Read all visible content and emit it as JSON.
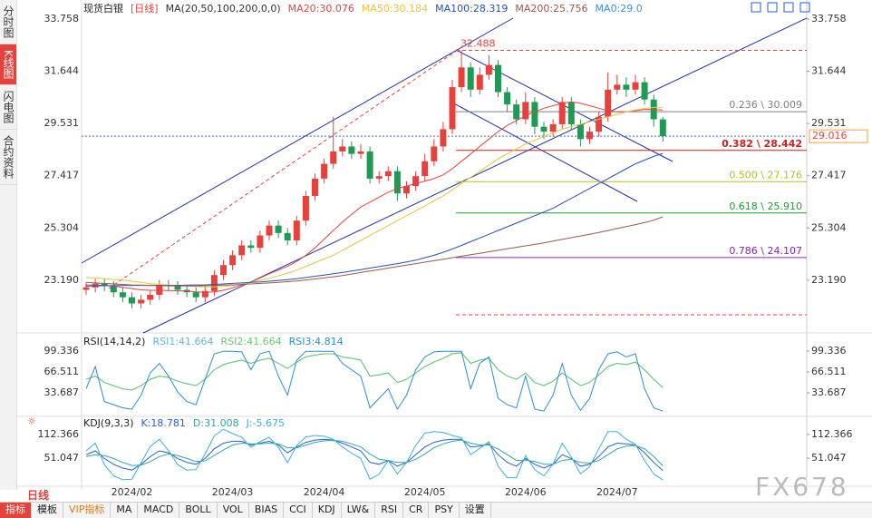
{
  "ui": {
    "side_tabs": [
      "分时图",
      "K线图",
      "闪电图",
      "合约资料"
    ],
    "period": "日线",
    "toolbar": [
      "指标",
      "模板",
      "VIP指标",
      "MA",
      "MACD",
      "BOLL",
      "VOL",
      "BIAS",
      "CCI",
      "KDJ",
      "LW&",
      "RSI",
      "CR",
      "PSY",
      "设置"
    ],
    "watermark": "FX678"
  },
  "chart_data": [
    {
      "type": "candlestick",
      "title": "现货白银",
      "subtitle": "[日线]",
      "indicator_label": "MA(20,50,100,200,0,0)",
      "categories": [
        null,
        null,
        null,
        null,
        null,
        "2024/02",
        null,
        null,
        null,
        null,
        null,
        null,
        null,
        null,
        null,
        null,
        "2024/03",
        null,
        null,
        null,
        null,
        null,
        null,
        null,
        null,
        null,
        "2024/04",
        null,
        null,
        null,
        null,
        null,
        null,
        null,
        null,
        null,
        null,
        "2024/05",
        null,
        null,
        null,
        null,
        null,
        null,
        null,
        null,
        null,
        null,
        "2024/06",
        null,
        null,
        null,
        null,
        null,
        null,
        null,
        null,
        null,
        "2024/07",
        null,
        null,
        null,
        null,
        null
      ],
      "open": [
        22.8,
        22.9,
        23.05,
        22.95,
        22.7,
        22.5,
        22.25,
        22.4,
        22.6,
        23.0,
        22.95,
        22.8,
        22.7,
        22.5,
        22.75,
        23.4,
        23.8,
        24.2,
        24.6,
        24.5,
        25.0,
        25.4,
        25.1,
        24.8,
        25.6,
        26.6,
        27.3,
        27.9,
        28.4,
        28.6,
        28.3,
        28.4,
        27.3,
        27.4,
        27.6,
        26.7,
        27.0,
        27.4,
        28.0,
        28.6,
        29.3,
        31.0,
        31.8,
        30.9,
        31.5,
        31.9,
        30.8,
        30.3,
        29.7,
        30.4,
        29.4,
        29.2,
        29.5,
        30.4,
        29.5,
        28.9,
        29.2,
        29.8,
        30.9,
        31.1,
        30.9,
        31.2,
        30.5,
        29.7
      ],
      "high": [
        23.1,
        23.25,
        23.25,
        23.15,
        22.9,
        22.7,
        22.6,
        22.8,
        23.2,
        23.2,
        23.15,
        23.0,
        22.9,
        22.95,
        23.6,
        24.0,
        24.4,
        24.8,
        24.8,
        25.2,
        25.6,
        25.6,
        25.3,
        25.8,
        26.8,
        27.5,
        28.1,
        29.8,
        28.9,
        28.8,
        28.7,
        28.6,
        27.6,
        27.8,
        27.8,
        27.2,
        27.6,
        28.3,
        28.9,
        29.6,
        31.3,
        32.488,
        32.0,
        31.8,
        32.3,
        32.1,
        31.0,
        30.5,
        30.8,
        30.6,
        29.6,
        29.7,
        30.6,
        30.6,
        29.7,
        29.4,
        30.0,
        31.6,
        31.5,
        31.4,
        31.5,
        31.4,
        30.7,
        29.8
      ],
      "low": [
        22.6,
        22.7,
        22.75,
        22.5,
        22.3,
        22.05,
        22.05,
        22.2,
        22.4,
        22.75,
        22.6,
        22.5,
        22.3,
        22.3,
        22.55,
        23.2,
        23.6,
        24.0,
        24.3,
        24.3,
        24.8,
        24.9,
        24.6,
        24.6,
        25.4,
        26.4,
        27.1,
        27.7,
        28.2,
        28.1,
        28.1,
        27.1,
        27.1,
        27.2,
        26.4,
        26.5,
        26.8,
        27.2,
        27.8,
        28.4,
        29.1,
        30.8,
        30.6,
        30.7,
        31.3,
        30.6,
        30.0,
        29.5,
        29.5,
        29.1,
        28.9,
        29.0,
        29.3,
        29.3,
        28.6,
        28.7,
        29.0,
        29.6,
        30.7,
        30.6,
        30.7,
        30.3,
        29.4,
        28.8
      ],
      "close": [
        22.9,
        23.05,
        22.95,
        22.7,
        22.5,
        22.25,
        22.4,
        22.6,
        23.0,
        22.95,
        22.8,
        22.7,
        22.5,
        22.75,
        23.4,
        23.8,
        24.2,
        24.6,
        24.5,
        25.0,
        25.4,
        25.1,
        24.8,
        25.6,
        26.6,
        27.3,
        27.9,
        28.4,
        28.6,
        28.3,
        28.4,
        27.3,
        27.4,
        27.6,
        26.7,
        27.0,
        27.4,
        28.0,
        28.6,
        29.3,
        31.0,
        31.8,
        30.9,
        31.5,
        31.9,
        30.8,
        30.3,
        29.7,
        30.4,
        29.4,
        29.2,
        29.5,
        30.4,
        29.5,
        28.9,
        29.2,
        29.8,
        30.9,
        31.1,
        30.9,
        31.2,
        30.5,
        29.7,
        29.016
      ],
      "up_color": "#e8413c",
      "down_color": "#1f9a55",
      "series": [
        {
          "name": "MA20:30.076",
          "color": "#e8413c",
          "values": [
            23.0,
            23.0,
            22.98,
            22.95,
            22.9,
            22.85,
            22.8,
            22.78,
            22.78,
            22.77,
            22.76,
            22.75,
            22.72,
            22.7,
            22.72,
            22.78,
            22.88,
            23.0,
            23.12,
            23.28,
            23.45,
            23.6,
            23.75,
            23.95,
            24.2,
            24.5,
            24.85,
            25.2,
            25.55,
            25.85,
            26.15,
            26.35,
            26.55,
            26.75,
            26.9,
            27.0,
            27.1,
            27.2,
            27.3,
            27.45,
            27.7,
            28.0,
            28.3,
            28.6,
            28.9,
            29.2,
            29.45,
            29.65,
            29.85,
            30.0,
            30.15,
            30.25,
            30.35,
            30.4,
            30.35,
            30.25,
            30.15,
            30.05,
            30.0,
            30.0,
            30.05,
            30.1,
            30.1,
            30.076
          ]
        },
        {
          "name": "MA50:30.184",
          "color": "#e8c53a",
          "values": [
            23.3,
            23.28,
            23.25,
            23.22,
            23.2,
            23.15,
            23.1,
            23.05,
            23.02,
            23.0,
            22.98,
            22.96,
            22.94,
            22.92,
            22.92,
            22.94,
            22.98,
            23.03,
            23.1,
            23.18,
            23.27,
            23.37,
            23.48,
            23.6,
            23.75,
            23.9,
            24.05,
            24.2,
            24.4,
            24.6,
            24.8,
            25.0,
            25.2,
            25.4,
            25.6,
            25.8,
            26.0,
            26.2,
            26.4,
            26.6,
            26.85,
            27.1,
            27.35,
            27.6,
            27.85,
            28.1,
            28.3,
            28.5,
            28.7,
            28.85,
            29.0,
            29.15,
            29.3,
            29.4,
            29.5,
            29.6,
            29.7,
            29.8,
            29.9,
            30.0,
            30.08,
            30.14,
            30.18,
            30.184
          ]
        },
        {
          "name": "MA100:28.319",
          "color": "#2a4fb8",
          "values": [
            22.95,
            22.96,
            22.97,
            22.97,
            22.98,
            22.98,
            22.98,
            22.98,
            22.98,
            22.98,
            22.98,
            22.99,
            23.0,
            23.0,
            23.02,
            23.04,
            23.06,
            23.08,
            23.1,
            23.12,
            23.15,
            23.18,
            23.21,
            23.25,
            23.3,
            23.35,
            23.4,
            23.45,
            23.5,
            23.56,
            23.62,
            23.68,
            23.74,
            23.8,
            23.86,
            23.93,
            24.0,
            24.1,
            24.2,
            24.32,
            24.45,
            24.6,
            24.75,
            24.9,
            25.05,
            25.2,
            25.35,
            25.5,
            25.65,
            25.8,
            25.95,
            26.1,
            26.3,
            26.5,
            26.7,
            26.9,
            27.1,
            27.3,
            27.5,
            27.7,
            27.9,
            28.05,
            28.2,
            28.319
          ]
        },
        {
          "name": "MA200:25.756",
          "color": "#9a5a4a",
          "values": [
            23.1,
            23.08,
            23.06,
            23.04,
            23.02,
            23.0,
            22.99,
            22.98,
            22.97,
            22.96,
            22.96,
            22.96,
            22.96,
            22.97,
            22.98,
            22.99,
            23.0,
            23.02,
            23.04,
            23.06,
            23.08,
            23.1,
            23.13,
            23.16,
            23.2,
            23.24,
            23.28,
            23.33,
            23.38,
            23.44,
            23.5,
            23.56,
            23.62,
            23.68,
            23.74,
            23.8,
            23.86,
            23.92,
            23.98,
            24.04,
            24.1,
            24.16,
            24.22,
            24.28,
            24.34,
            24.4,
            24.46,
            24.52,
            24.58,
            24.64,
            24.7,
            24.77,
            24.84,
            24.91,
            24.98,
            25.05,
            25.12,
            25.2,
            25.28,
            25.36,
            25.44,
            25.52,
            25.62,
            25.756
          ]
        }
      ],
      "legend_extra": {
        "name": "MA0:29.0",
        "color": "#3a8ee6"
      },
      "fib_levels": [
        {
          "label": "32.488",
          "value": 32.488,
          "color": "#e8413c",
          "dashed": true
        },
        {
          "label": "0.236 \\ 30.009",
          "value": 30.009,
          "color": "#808080"
        },
        {
          "label": "0.382 \\ 28.442",
          "value": 28.442,
          "color": "#d02020"
        },
        {
          "label": "0.500 \\ 27.176",
          "value": 27.176,
          "color": "#b8c020"
        },
        {
          "label": "0.618 \\ 25.910",
          "value": 25.91,
          "color": "#20a030"
        },
        {
          "label": "0.786 \\ 24.107",
          "value": 24.107,
          "color": "#8a20c0"
        },
        {
          "value": 21.79,
          "color": "#e8413c",
          "dashed": true
        }
      ],
      "last_price": 29.016,
      "ylim": [
        21.13,
        34.16
      ],
      "yticks": [
        {
          "value": 23.19,
          "label": "23.190"
        },
        25.304,
        27.417,
        29.531,
        31.644,
        33.758
      ]
    },
    {
      "type": "line",
      "title": "RSI(14,14,2)",
      "ylim": [
        -0.56,
        120.74
      ],
      "yticks": [
        33.687,
        66.511,
        99.336
      ],
      "series": [
        {
          "name": "RSI1:41.664",
          "color": "#5fb8d8",
          "values": [
            55,
            60,
            50,
            45,
            40,
            38,
            45,
            55,
            60,
            58,
            52,
            48,
            45,
            55,
            70,
            78,
            82,
            85,
            80,
            85,
            88,
            80,
            72,
            82,
            90,
            93,
            95,
            95,
            90,
            88,
            85,
            60,
            62,
            65,
            50,
            55,
            65,
            75,
            82,
            88,
            95,
            97,
            80,
            85,
            88,
            70,
            60,
            55,
            65,
            50,
            45,
            52,
            65,
            55,
            45,
            50,
            62,
            75,
            80,
            78,
            82,
            70,
            55,
            41.664
          ]
        },
        {
          "name": "RSI2:41.664",
          "color": "#6cc870",
          "values": [
            55,
            60,
            50,
            45,
            40,
            38,
            45,
            55,
            60,
            58,
            52,
            48,
            45,
            55,
            70,
            78,
            82,
            85,
            80,
            85,
            88,
            80,
            72,
            82,
            90,
            93,
            95,
            95,
            90,
            88,
            85,
            60,
            62,
            65,
            50,
            55,
            65,
            75,
            82,
            88,
            95,
            97,
            80,
            85,
            88,
            70,
            60,
            55,
            65,
            50,
            45,
            52,
            65,
            55,
            45,
            50,
            62,
            75,
            80,
            78,
            82,
            70,
            55,
            41.664
          ]
        },
        {
          "name": "RSI3:4.814",
          "color": "#2a8fd0",
          "values": [
            40,
            75,
            20,
            15,
            10,
            8,
            30,
            65,
            80,
            60,
            35,
            20,
            15,
            55,
            95,
            99,
            99,
            98,
            70,
            95,
            99,
            60,
            30,
            85,
            99,
            99,
            99,
            99,
            80,
            70,
            60,
            10,
            25,
            40,
            8,
            30,
            70,
            90,
            98,
            99,
            99,
            99,
            40,
            80,
            90,
            25,
            15,
            10,
            60,
            8,
            5,
            30,
            80,
            30,
            6,
            25,
            70,
            95,
            98,
            90,
            95,
            40,
            10,
            4.814
          ]
        }
      ]
    },
    {
      "type": "line",
      "title": "KDJ(9,3,3)",
      "ylim": [
        -19.7,
        152.46
      ],
      "yticks": [
        51.047,
        112.366
      ],
      "series": [
        {
          "name": "K:18.781",
          "color": "#2a5fd0",
          "values": [
            60,
            70,
            50,
            35,
            25,
            20,
            35,
            55,
            70,
            65,
            50,
            40,
            35,
            50,
            75,
            90,
            95,
            95,
            85,
            90,
            95,
            85,
            65,
            80,
            92,
            98,
            100,
            98,
            90,
            80,
            70,
            40,
            35,
            45,
            30,
            40,
            60,
            80,
            92,
            98,
            100,
            100,
            80,
            82,
            88,
            60,
            40,
            30,
            50,
            35,
            25,
            35,
            60,
            50,
            30,
            35,
            55,
            80,
            90,
            88,
            85,
            65,
            40,
            18.781
          ]
        },
        {
          "name": "D:31.008",
          "color": "#30a8a0",
          "values": [
            55,
            60,
            58,
            50,
            40,
            32,
            33,
            42,
            55,
            62,
            58,
            50,
            42,
            44,
            58,
            72,
            85,
            90,
            88,
            88,
            90,
            88,
            78,
            78,
            85,
            92,
            96,
            97,
            95,
            88,
            80,
            62,
            48,
            45,
            40,
            40,
            48,
            62,
            78,
            88,
            95,
            98,
            90,
            85,
            85,
            75,
            60,
            45,
            46,
            42,
            35,
            35,
            45,
            48,
            40,
            38,
            45,
            60,
            75,
            82,
            84,
            75,
            55,
            31.008
          ]
        },
        {
          "name": "J:-5.675",
          "color": "#3ab0e0",
          "values": [
            70,
            90,
            34,
            5,
            -5,
            -4,
            39,
            81,
            100,
            71,
            34,
            20,
            21,
            62,
            109,
            126,
            115,
            105,
            79,
            94,
            105,
            79,
            39,
            84,
            106,
            110,
            108,
            100,
            80,
            64,
            50,
            -4,
            9,
            45,
            10,
            40,
            84,
            116,
            120,
            118,
            110,
            104,
            60,
            76,
            94,
            30,
            0,
            0,
            58,
            21,
            5,
            35,
            90,
            54,
            10,
            29,
            75,
            120,
            120,
            100,
            87,
            45,
            10,
            -5.675
          ]
        }
      ]
    }
  ]
}
